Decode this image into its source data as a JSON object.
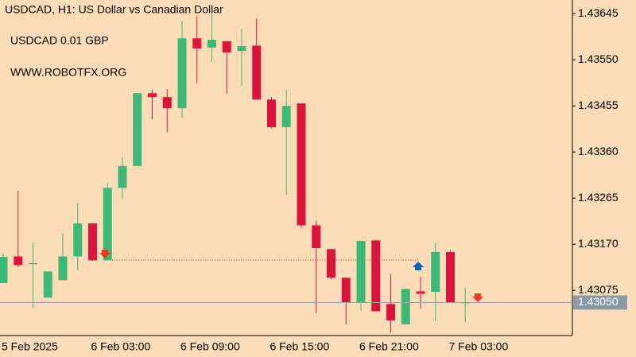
{
  "chart_data": {
    "type": "candlestick",
    "title": "USDCAD, H1:  US Dollar vs Canadian Dollar",
    "annotations": [
      "USDCAD 0.01 GBP",
      "WWW.ROBOTFX.ORG"
    ],
    "categories": [
      "5 Feb 2025",
      null,
      null,
      null,
      null,
      null,
      "6 Feb 03:00",
      null,
      null,
      null,
      null,
      null,
      "6 Feb 09:00",
      null,
      null,
      null,
      null,
      null,
      "6 Feb 15:00",
      null,
      null,
      null,
      null,
      null,
      "6 Feb 21:00",
      null,
      null,
      null,
      null,
      null,
      "7 Feb 03:00",
      null
    ],
    "open": [
      1.4309,
      1.43145,
      1.43129,
      1.4306,
      1.43096,
      1.43145,
      1.43213,
      1.43137,
      1.43286,
      1.43331,
      1.43481,
      1.43473,
      1.4345,
      1.43594,
      1.43575,
      1.43588,
      1.43568,
      1.43579,
      1.43468,
      1.43411,
      1.4346,
      1.43209,
      1.4316,
      1.43101,
      1.4305,
      1.43178,
      1.43047,
      1.43005,
      1.43073,
      1.43072,
      1.43154,
      1.4305
    ],
    "high": [
      1.43152,
      1.4328,
      1.43173,
      1.43114,
      1.43193,
      1.43255,
      1.43213,
      1.43296,
      1.4335,
      1.43481,
      1.43488,
      1.43489,
      1.4363,
      1.4364,
      1.43648,
      1.43588,
      1.43614,
      1.43635,
      1.43473,
      1.43488,
      1.4346,
      1.43219,
      1.4316,
      1.43101,
      1.43177,
      1.43178,
      1.43109,
      1.43078,
      1.43103,
      1.43173,
      1.43157,
      1.4308
    ],
    "low": [
      1.4309,
      1.43123,
      1.43039,
      1.4306,
      1.43096,
      1.43116,
      1.43136,
      1.43137,
      1.43263,
      1.43331,
      1.43427,
      1.43401,
      1.4343,
      1.43501,
      1.43545,
      1.4348,
      1.43496,
      1.43468,
      1.43409,
      1.43272,
      1.43203,
      1.43028,
      1.43098,
      1.43005,
      1.43032,
      1.43032,
      1.42988,
      1.43005,
      1.43037,
      1.43013,
      1.4305,
      1.43009
    ],
    "close": [
      1.43144,
      1.43127,
      1.43131,
      1.43114,
      1.43145,
      1.43213,
      1.43137,
      1.43286,
      1.43331,
      1.43481,
      1.43473,
      1.4345,
      1.43594,
      1.43573,
      1.43591,
      1.43565,
      1.43578,
      1.43468,
      1.43411,
      1.43455,
      1.43209,
      1.43162,
      1.43101,
      1.4305,
      1.43177,
      1.43032,
      1.43013,
      1.43078,
      1.43068,
      1.43154,
      1.4305,
      1.4305
    ],
    "up_color": "#3cb878",
    "down_color": "#dc143c",
    "current_price": {
      "value": 1.4305,
      "label": "1.43050"
    },
    "ylim": [
      1.42982,
      1.43673
    ],
    "yticks": [
      1.43645,
      {
        "value": 1.4355,
        "label": "1.43550"
      },
      1.43455,
      {
        "value": 1.4336,
        "label": "1.43360"
      },
      1.43265,
      {
        "value": 1.4317,
        "label": "1.43170"
      },
      1.43075
    ]
  }
}
